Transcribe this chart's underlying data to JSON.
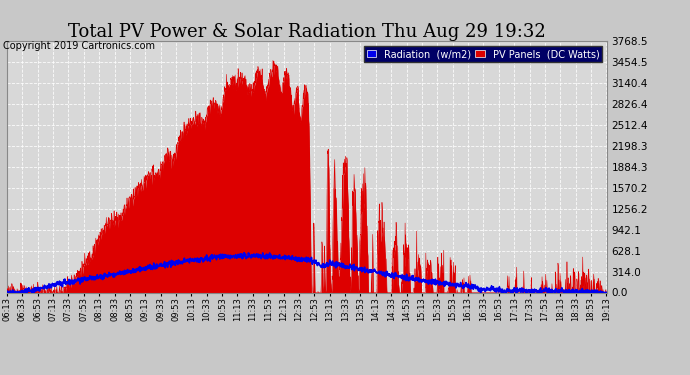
{
  "title": "Total PV Power & Solar Radiation Thu Aug 29 19:32",
  "copyright": "Copyright 2019 Cartronics.com",
  "legend_radiation": "Radiation  (w/m2)",
  "legend_pv": "PV Panels  (DC Watts)",
  "radiation_color": "#0000ee",
  "pv_color": "#dd0000",
  "pv_fill_color": "#dd0000",
  "bg_color": "#c8c8c8",
  "plot_bg_color": "#d8d8d8",
  "ymin": 0,
  "ymax": 3768.5,
  "yticks": [
    0.0,
    314.0,
    628.1,
    942.1,
    1256.2,
    1570.2,
    1884.3,
    2198.3,
    2512.4,
    2826.4,
    3140.4,
    3454.5,
    3768.5
  ],
  "grid_color": "#ffffff",
  "title_fontsize": 13,
  "copyright_fontsize": 7
}
